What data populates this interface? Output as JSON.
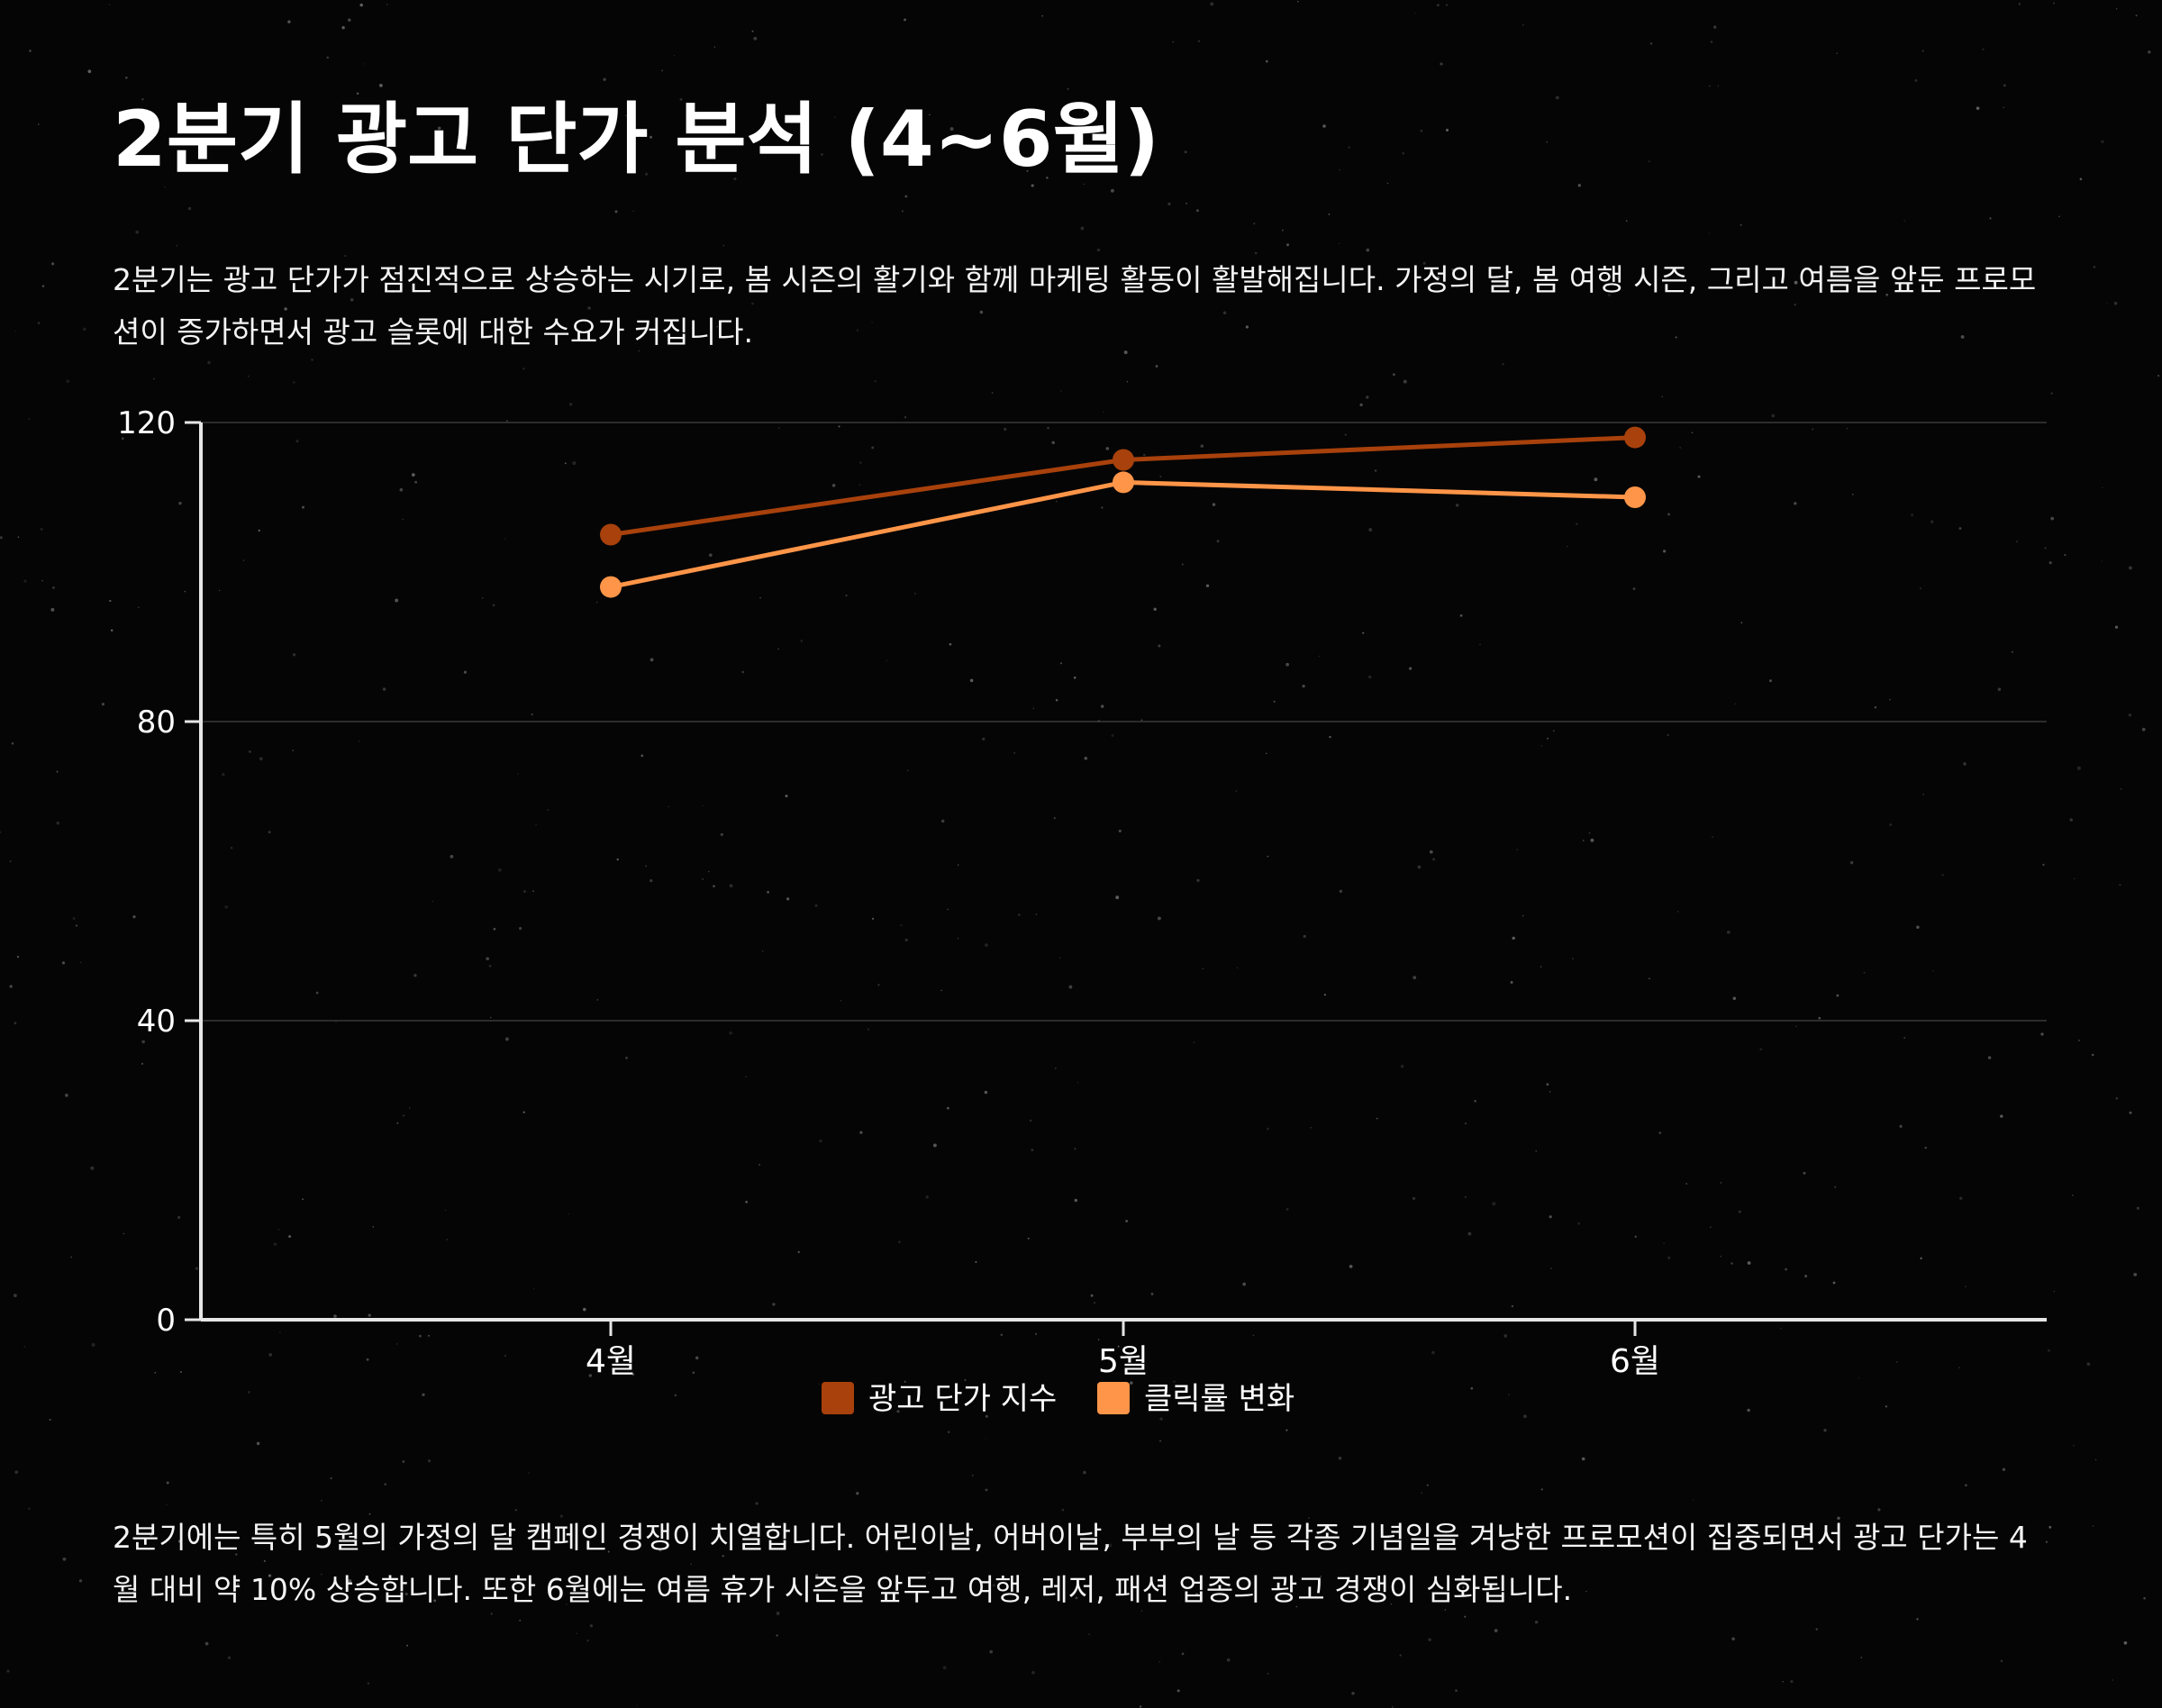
{
  "title": "2분기 광고 단가 분석 (4~6월)",
  "intro": "2분기는 광고 단가가 점진적으로 상승하는 시기로, 봄 시즌의 활기와 함께 마케팅 활동이 활발해집니다. 가정의 달, 봄 여행 시즌, 그리고 여름을 앞둔 프로모션이 증가하면서 광고 슬롯에 대한 수요가 커집니다.",
  "outro": "2분기에는 특히 5월의 가정의 달 캠페인 경쟁이 치열합니다. 어린이날, 어버이날, 부부의 날 등 각종 기념일을 겨냥한 프로모션이 집중되면서 광고 단가는 4월 대비 약 10% 상승합니다. 또한 6월에는 여름 휴가 시즌을 앞두고 여행, 레저, 패션 업종의 광고 경쟁이 심화됩니다.",
  "colors": {
    "background": "#050505",
    "series1": "#a8410c",
    "series2": "#ff9548",
    "axis": "#e6e6e6",
    "grid": "#3a3a3a"
  },
  "chart_data": {
    "type": "line",
    "categories": [
      "4월",
      "5월",
      "6월"
    ],
    "series": [
      {
        "name": "광고 단가 지수",
        "values": [
          105,
          115,
          118
        ]
      },
      {
        "name": "클릭률 변화",
        "values": [
          98,
          112,
          110
        ]
      }
    ],
    "ylim": [
      0,
      120
    ],
    "yticks": [
      0,
      40,
      80,
      120
    ],
    "grid": true,
    "legend": "bottom-center",
    "title": "",
    "xlabel": "",
    "ylabel": ""
  }
}
